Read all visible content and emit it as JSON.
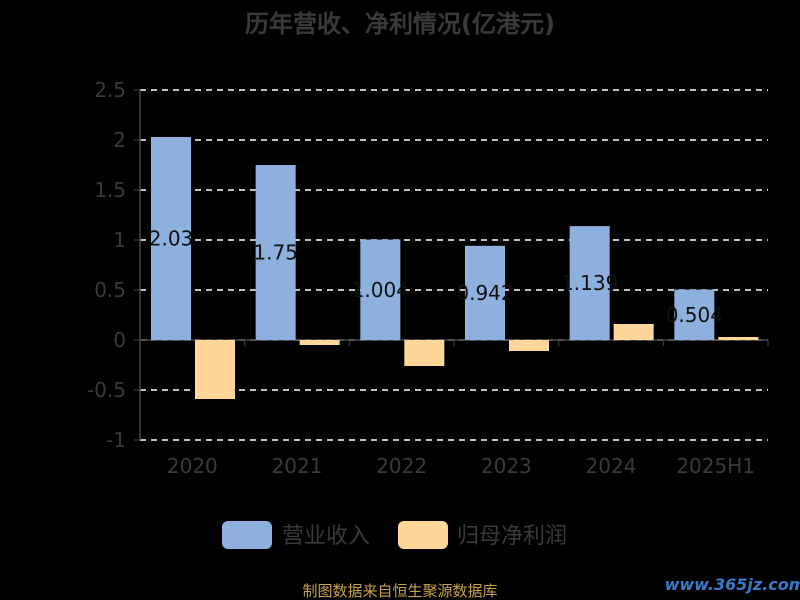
{
  "chart_data": {
    "type": "bar",
    "title": "历年营收、净利情况(亿港元)",
    "categories": [
      "2020",
      "2021",
      "2022",
      "2023",
      "2024",
      "2025H1"
    ],
    "series": [
      {
        "name": "营业收入",
        "color": "#8eb0de",
        "values": [
          2.03,
          1.75,
          1.004,
          0.942,
          1.139,
          0.504
        ],
        "labels": [
          "2.03",
          "1.75",
          "1.004",
          "0.942",
          "1.139",
          "0.504"
        ]
      },
      {
        "name": "归母净利润",
        "color": "#ffd699",
        "values": [
          -0.59,
          -0.05,
          -0.26,
          -0.11,
          0.16,
          0.03
        ]
      }
    ],
    "ylim": [
      -1,
      2.5
    ],
    "yticks": [
      "2.5",
      "2",
      "1.5",
      "1",
      "0.5",
      "0",
      "-0.5",
      "-1"
    ],
    "grid": true,
    "legend_position": "bottom"
  },
  "footer": {
    "source": "制图数据来自恒生聚源数据库",
    "watermark": "www.365jz.com"
  }
}
